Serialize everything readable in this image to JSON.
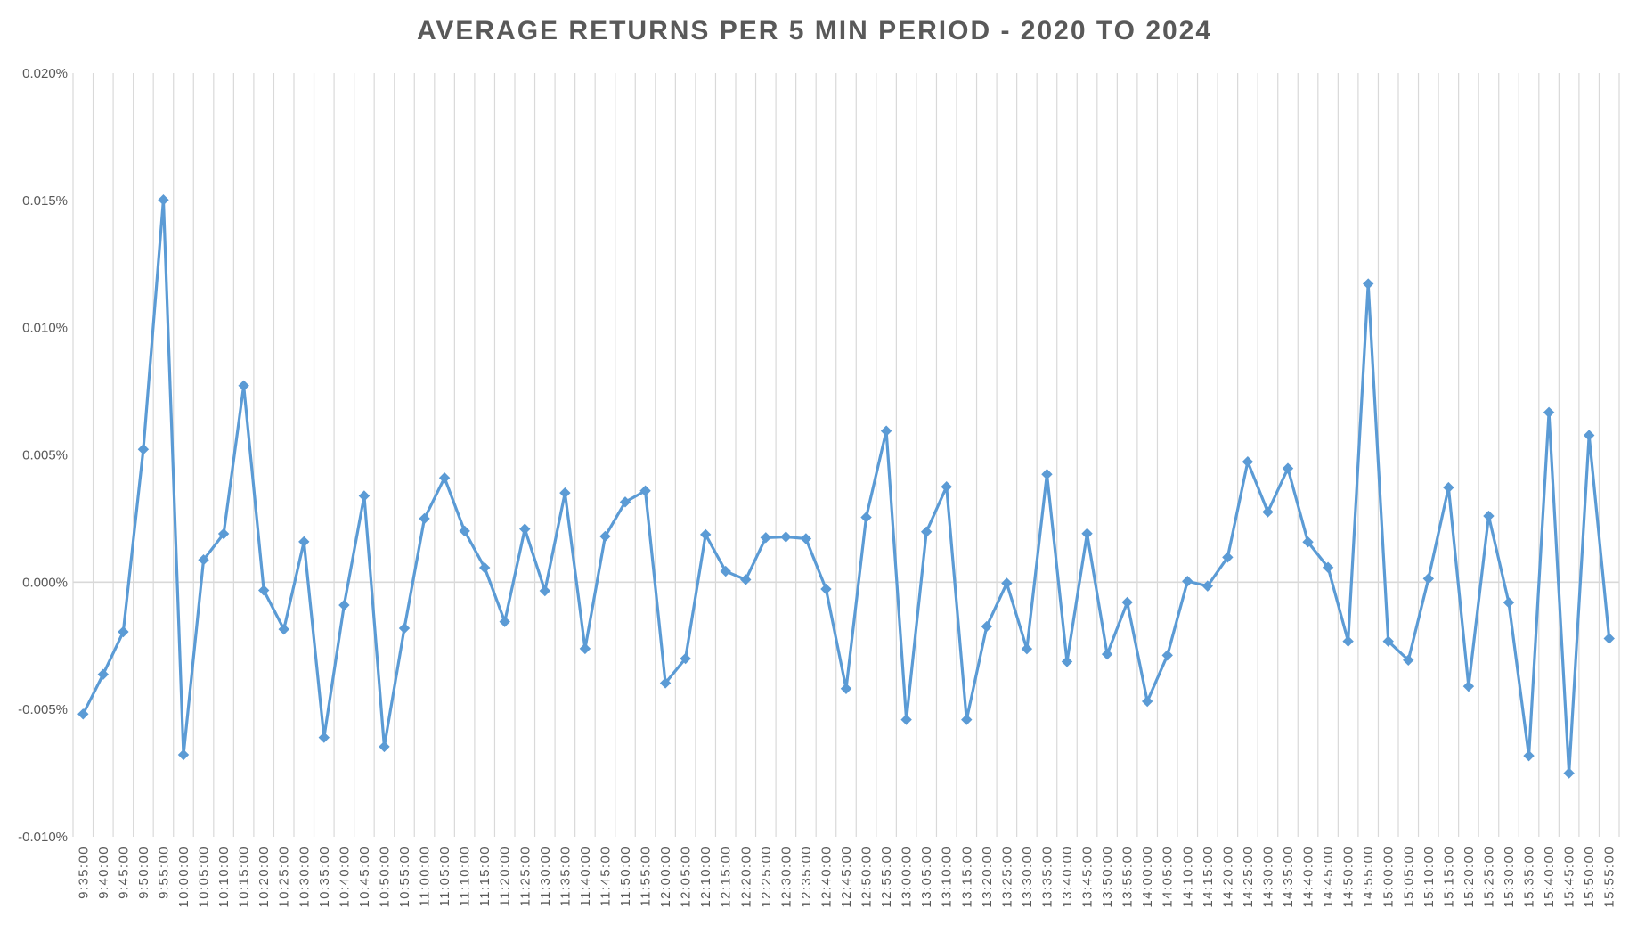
{
  "chart_data": {
    "type": "line",
    "title": "AVERAGE RETURNS PER 5 MIN PERIOD - 2020 TO 2024",
    "xlabel": "",
    "ylabel": "",
    "ylim": [
      -0.01,
      0.02
    ],
    "yticks": [
      -0.01,
      -0.005,
      0.0,
      0.005,
      0.01,
      0.015,
      0.02
    ],
    "ytick_labels": [
      "-0.010%",
      "-0.005%",
      "0.000%",
      "0.005%",
      "0.010%",
      "0.015%",
      "0.020%"
    ],
    "grid": "vertical",
    "legend": "none",
    "colors": {
      "line": "#5b9bd5",
      "grid": "#d9d9d9",
      "axis": "#d9d9d9",
      "text": "#595959"
    },
    "x": [
      "9:35:00",
      "9:40:00",
      "9:45:00",
      "9:50:00",
      "9:55:00",
      "10:00:00",
      "10:05:00",
      "10:10:00",
      "10:15:00",
      "10:20:00",
      "10:25:00",
      "10:30:00",
      "10:35:00",
      "10:40:00",
      "10:45:00",
      "10:50:00",
      "10:55:00",
      "11:00:00",
      "11:05:00",
      "11:10:00",
      "11:15:00",
      "11:20:00",
      "11:25:00",
      "11:30:00",
      "11:35:00",
      "11:40:00",
      "11:45:00",
      "11:50:00",
      "11:55:00",
      "12:00:00",
      "12:05:00",
      "12:10:00",
      "12:15:00",
      "12:20:00",
      "12:25:00",
      "12:30:00",
      "12:35:00",
      "12:40:00",
      "12:45:00",
      "12:50:00",
      "12:55:00",
      "13:00:00",
      "13:05:00",
      "13:10:00",
      "13:15:00",
      "13:20:00",
      "13:25:00",
      "13:30:00",
      "13:35:00",
      "13:40:00",
      "13:45:00",
      "13:50:00",
      "13:55:00",
      "14:00:00",
      "14:05:00",
      "14:10:00",
      "14:15:00",
      "14:20:00",
      "14:25:00",
      "14:30:00",
      "14:35:00",
      "14:40:00",
      "14:45:00",
      "14:50:00",
      "14:55:00",
      "15:00:00",
      "15:05:00",
      "15:10:00",
      "15:15:00",
      "15:20:00",
      "15:25:00",
      "15:30:00",
      "15:35:00",
      "15:40:00",
      "15:45:00",
      "15:50:00",
      "15:55:00"
    ],
    "series": [
      {
        "values": [
          -0.00518,
          -0.00362,
          -0.00195,
          0.00522,
          0.01502,
          -0.00678,
          0.00088,
          0.0019,
          0.00772,
          -0.00032,
          -0.00185,
          0.00159,
          -0.0061,
          -0.0009,
          0.00339,
          -0.00646,
          -0.00181,
          0.0025,
          0.0041,
          0.00201,
          0.00057,
          -0.00155,
          0.00209,
          -0.00034,
          0.00351,
          -0.00261,
          0.0018,
          0.00315,
          0.00359,
          -0.00396,
          -0.003,
          0.00187,
          0.00043,
          0.0001,
          0.00175,
          0.00178,
          0.00171,
          -0.00027,
          -0.00418,
          0.00255,
          0.00594,
          -0.0054,
          0.00198,
          0.00375,
          -0.0054,
          -0.00174,
          -4e-05,
          -0.00262,
          0.00424,
          -0.00312,
          0.00191,
          -0.00283,
          -0.00079,
          -0.00468,
          -0.00287,
          4e-05,
          -0.00015,
          0.00098,
          0.00473,
          0.00276,
          0.00447,
          0.00158,
          0.00058,
          -0.00232,
          0.01172,
          -0.00232,
          -0.00306,
          0.00014,
          0.00372,
          -0.00409,
          0.0026,
          -0.0008,
          -0.00682,
          0.00667,
          -0.0075,
          0.00577,
          -0.00221
        ]
      }
    ]
  }
}
